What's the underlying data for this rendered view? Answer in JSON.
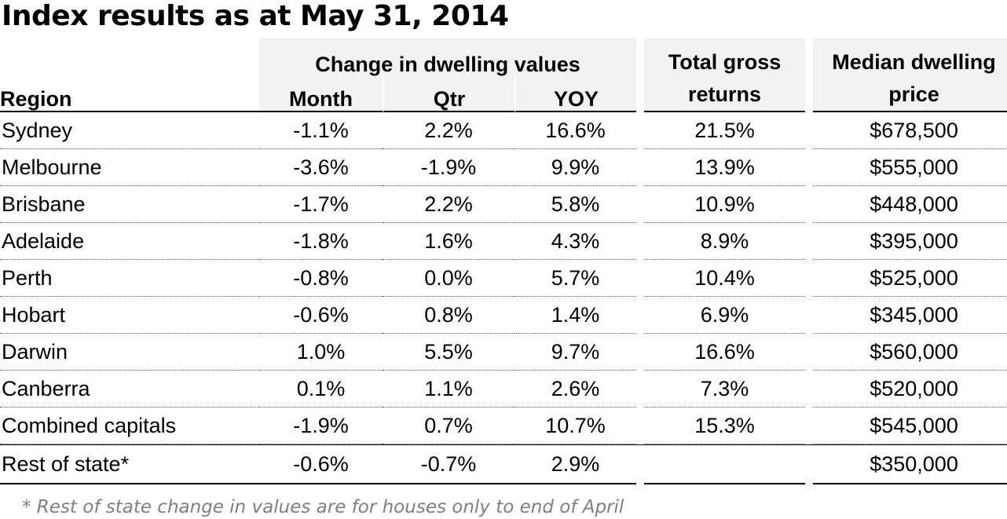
{
  "title": "Index results as at May 31, 2014",
  "headers": {
    "group_change": "Change in dwelling values",
    "region": "Region",
    "month": "Month",
    "qtr": "Qtr",
    "yoy": "YOY",
    "returns_line1": "Total gross",
    "returns_line2": "returns",
    "price_line1": "Median dwelling",
    "price_line2": "price"
  },
  "rows": [
    {
      "region": "Sydney",
      "month": "-1.1%",
      "qtr": "2.2%",
      "yoy": "16.6%",
      "returns": "21.5%",
      "price": "$678,500"
    },
    {
      "region": "Melbourne",
      "month": "-3.6%",
      "qtr": "-1.9%",
      "yoy": "9.9%",
      "returns": "13.9%",
      "price": "$555,000"
    },
    {
      "region": "Brisbane",
      "month": "-1.7%",
      "qtr": "2.2%",
      "yoy": "5.8%",
      "returns": "10.9%",
      "price": "$448,000"
    },
    {
      "region": "Adelaide",
      "month": "-1.8%",
      "qtr": "1.6%",
      "yoy": "4.3%",
      "returns": "8.9%",
      "price": "$395,000"
    },
    {
      "region": "Perth",
      "month": "-0.8%",
      "qtr": "0.0%",
      "yoy": "5.7%",
      "returns": "10.4%",
      "price": "$525,000"
    },
    {
      "region": "Hobart",
      "month": "-0.6%",
      "qtr": "0.8%",
      "yoy": "1.4%",
      "returns": "6.9%",
      "price": "$345,000"
    },
    {
      "region": "Darwin",
      "month": "1.0%",
      "qtr": "5.5%",
      "yoy": "9.7%",
      "returns": "16.6%",
      "price": "$560,000"
    },
    {
      "region": "Canberra",
      "month": "0.1%",
      "qtr": "1.1%",
      "yoy": "2.6%",
      "returns": "7.3%",
      "price": "$520,000"
    },
    {
      "region": "Combined capitals",
      "month": "-1.9%",
      "qtr": "0.7%",
      "yoy": "10.7%",
      "returns": "15.3%",
      "price": "$545,000"
    },
    {
      "region": "Rest of state*",
      "month": "-0.6%",
      "qtr": "-0.7%",
      "yoy": "2.9%",
      "returns": "",
      "price": "$350,000"
    }
  ],
  "footnote": "* Rest of state change in values are for houses only to end of April",
  "colors": {
    "header_shade": "#f2f2f2",
    "footnote_text": "#7f7f7f",
    "rule": "#000000"
  }
}
